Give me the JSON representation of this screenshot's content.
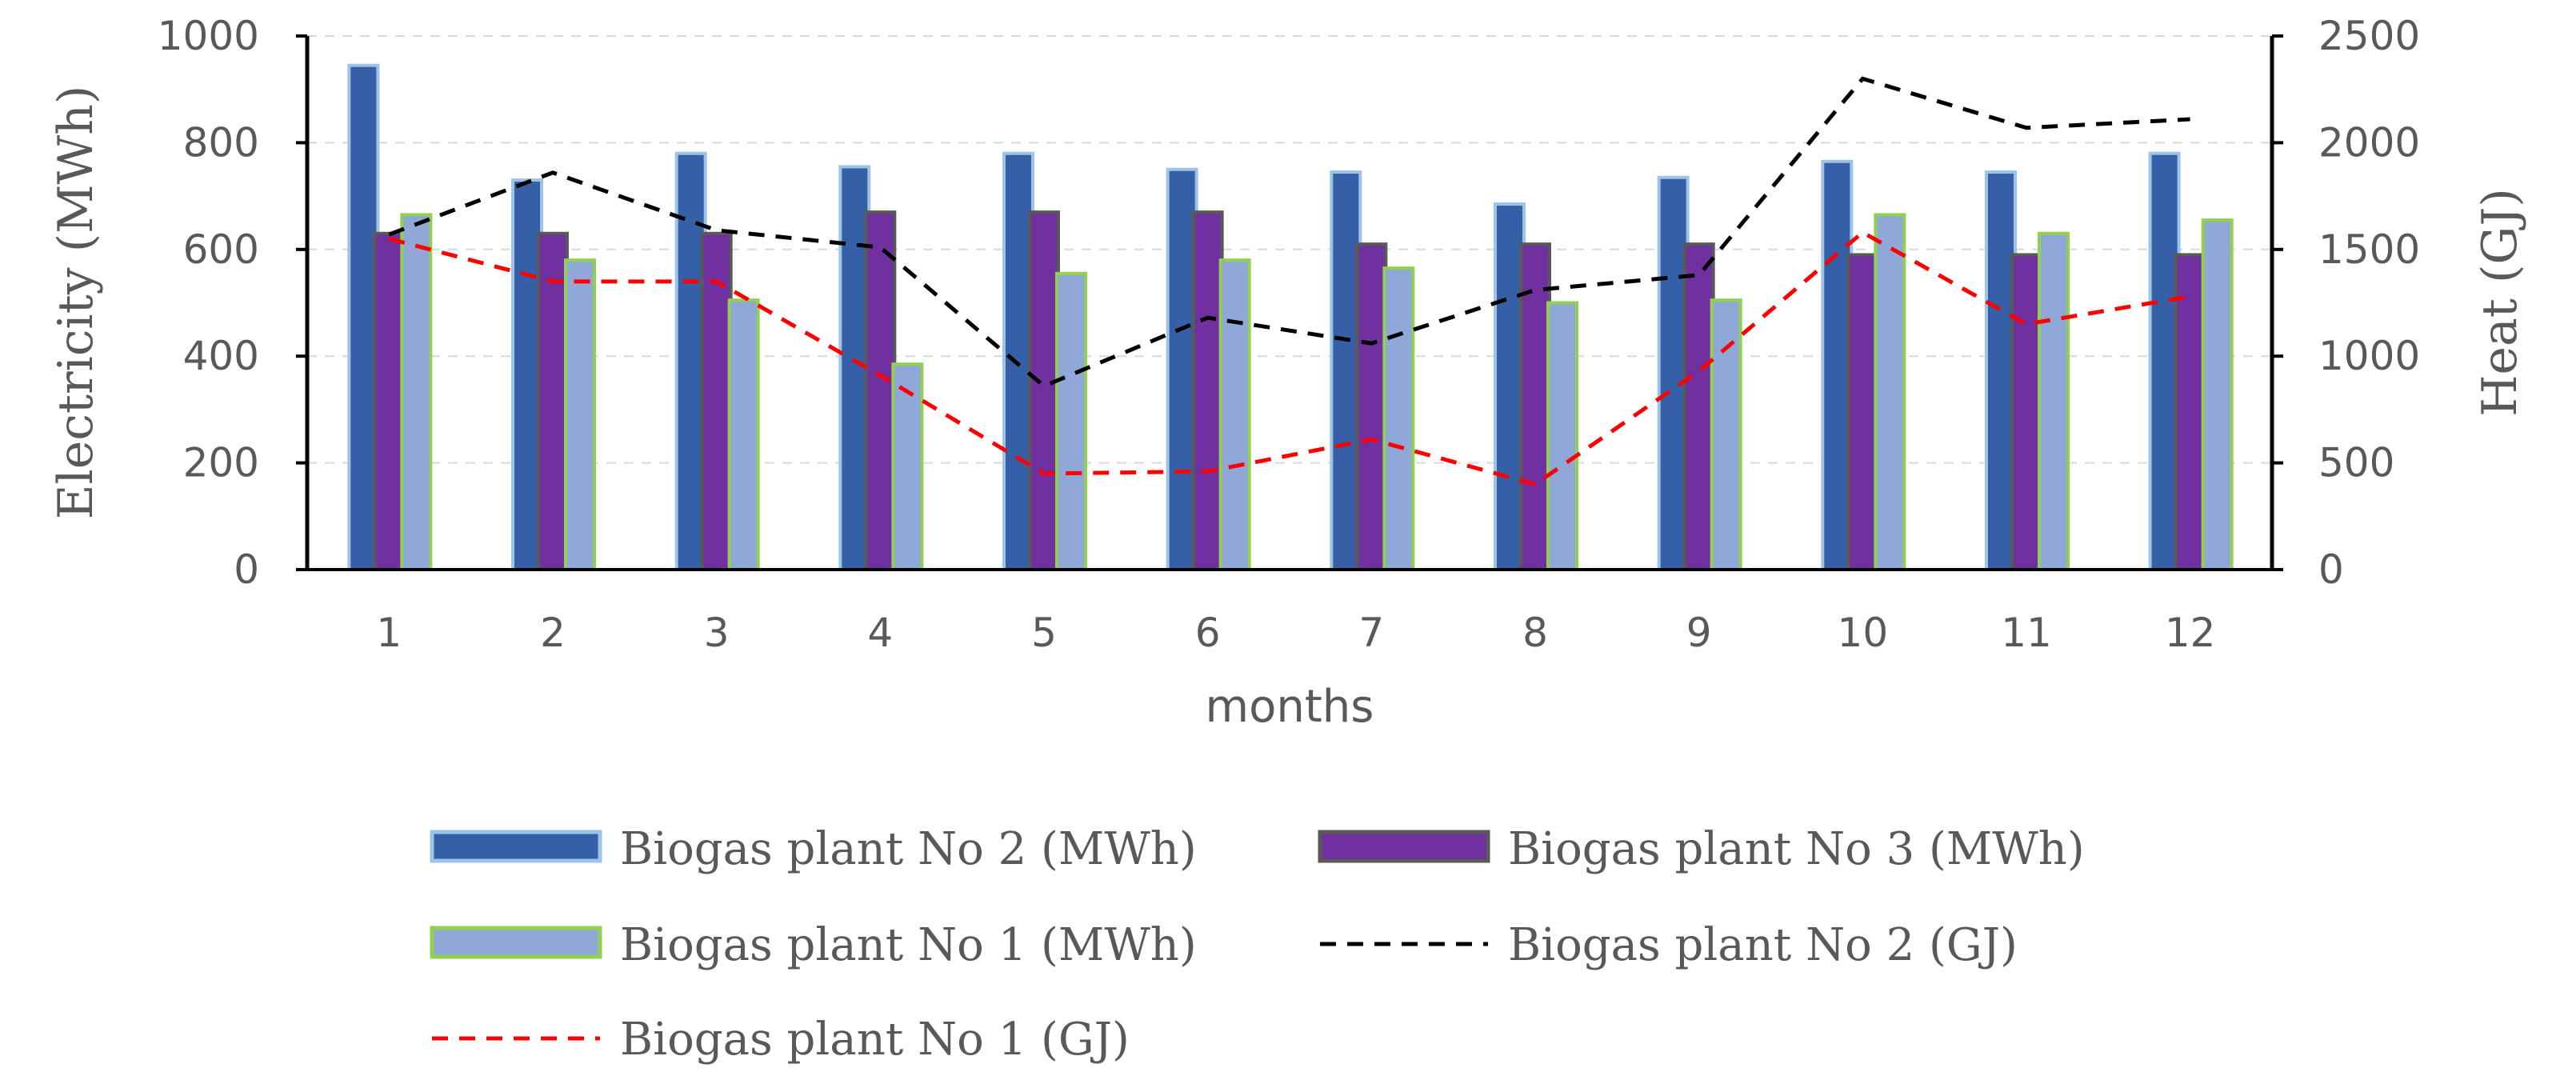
{
  "chart_data": {
    "type": "bar",
    "xlabel": "months",
    "ylabel_left": "Electricity (MWh)",
    "ylabel_right": "Heat (GJ)",
    "ylim_left": [
      0,
      1000
    ],
    "ylim_right": [
      0,
      2500
    ],
    "yticks_left": [
      "0",
      "200",
      "400",
      "600",
      "800",
      "1000"
    ],
    "yticks_right": [
      "0",
      "500",
      "1000",
      "1500",
      "2000",
      "2500"
    ],
    "categories": [
      "1",
      "2",
      "3",
      "4",
      "5",
      "6",
      "7",
      "8",
      "9",
      "10",
      "11",
      "12"
    ],
    "grid": true,
    "legend_position": "bottom",
    "bar_series": [
      {
        "name": "Biogas plant No 2 (MWh)",
        "axis": "left",
        "fill": "#3560a8",
        "stroke": "#9dc3e6",
        "values": [
          945,
          730,
          780,
          755,
          780,
          750,
          745,
          685,
          735,
          765,
          745,
          780
        ]
      },
      {
        "name": "Biogas plant No 3 (MWh)",
        "axis": "left",
        "fill": "#7030a0",
        "stroke": "#595959",
        "values": [
          630,
          630,
          630,
          670,
          670,
          670,
          610,
          610,
          610,
          590,
          590,
          590
        ]
      },
      {
        "name": "Biogas plant No 1 (MWh)",
        "axis": "left",
        "fill": "#8fa8d8",
        "stroke": "#92d050",
        "values": [
          665,
          580,
          505,
          385,
          555,
          580,
          565,
          500,
          505,
          665,
          630,
          655
        ]
      }
    ],
    "line_series": [
      {
        "name": "Biogas plant No 2  (GJ)",
        "axis": "right",
        "color": "#000000",
        "values": [
          1570,
          1860,
          1590,
          1510,
          860,
          1180,
          1060,
          1310,
          1380,
          2300,
          2070,
          2110
        ]
      },
      {
        "name": "Biogas plant No 1  (GJ)",
        "axis": "right",
        "color": "#ff0000",
        "values": [
          1550,
          1350,
          1350,
          910,
          450,
          460,
          610,
          400,
          930,
          1580,
          1150,
          1280
        ]
      }
    ],
    "legend": [
      "Biogas plant No 2 (MWh)",
      "Biogas plant No 3 (MWh)",
      "Biogas plant No 1 (MWh)",
      "Biogas plant No 2  (GJ)",
      "Biogas plant No 1  (GJ)"
    ]
  }
}
